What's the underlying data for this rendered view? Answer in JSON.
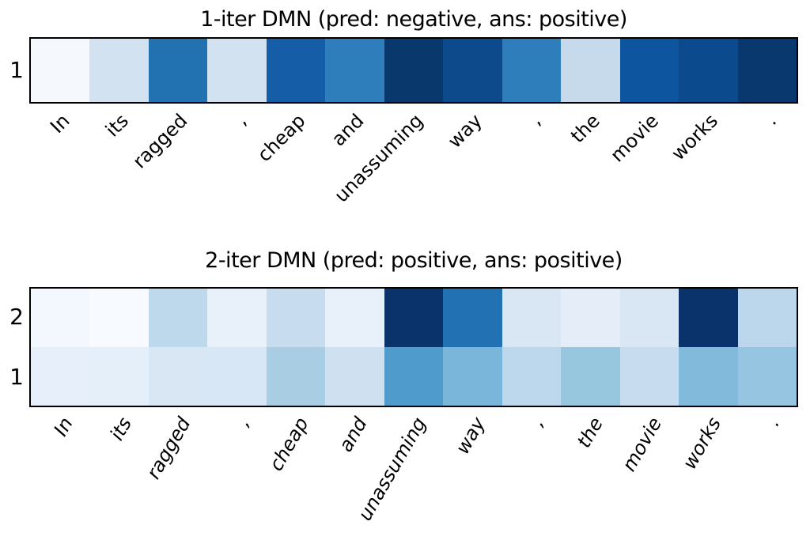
{
  "chart_data": [
    {
      "type": "heatmap",
      "title": "1-iter DMN (pred: negative, ans: positive)",
      "colormap": "Blues",
      "value_range": [
        0,
        1
      ],
      "categories": [
        "In",
        "its",
        "ragged",
        ",",
        "cheap",
        "and",
        "unassuming",
        "way",
        ",",
        "the",
        "movie",
        "works",
        "."
      ],
      "rows": [
        {
          "label": "1",
          "values": [
            0.02,
            0.19,
            0.74,
            0.19,
            0.82,
            0.7,
            0.99,
            0.9,
            0.7,
            0.25,
            0.86,
            0.9,
            0.99
          ],
          "colors": [
            "#f5f9fd",
            "#d2e2f1",
            "#2272b2",
            "#d3e2f0",
            "#155da7",
            "#2e7ebc",
            "#09386d",
            "#0d4a8b",
            "#2e7ebc",
            "#c7daec",
            "#0d559e",
            "#0b4a8d",
            "#09386e"
          ]
        }
      ]
    },
    {
      "type": "heatmap",
      "title": "2-iter DMN (pred: positive, ans: positive)",
      "colormap": "Blues",
      "value_range": [
        0,
        1
      ],
      "categories": [
        "In",
        "its",
        "ragged",
        ",",
        "cheap",
        "and",
        "unassuming",
        "way",
        ",",
        "the",
        "movie",
        "works",
        "."
      ],
      "rows": [
        {
          "label": "2",
          "values": [
            0.03,
            0.01,
            0.28,
            0.1,
            0.24,
            0.1,
            1.0,
            0.74,
            0.16,
            0.12,
            0.16,
            1.0,
            0.29
          ],
          "colors": [
            "#f2f8fd",
            "#f7fafe",
            "#bed8ec",
            "#e8f0fa",
            "#c7dcef",
            "#e8f1fa",
            "#0a336c",
            "#2271b2",
            "#d9e6f4",
            "#e4edf8",
            "#d9e7f5",
            "#0a336c",
            "#bcd7ec"
          ]
        },
        {
          "label": "1",
          "values": [
            0.11,
            0.12,
            0.16,
            0.17,
            0.37,
            0.21,
            0.6,
            0.48,
            0.29,
            0.42,
            0.24,
            0.46,
            0.42
          ],
          "colors": [
            "#e7f0fa",
            "#e5eff9",
            "#d9e7f5",
            "#d8e7f5",
            "#a9cde3",
            "#cfe0f1",
            "#4f9bcb",
            "#7ab5da",
            "#bdd8ec",
            "#97c6df",
            "#c8dcf0",
            "#81badb",
            "#95c5e0"
          ]
        }
      ]
    }
  ],
  "border_color": "#000000",
  "background_color": "#ffffff"
}
